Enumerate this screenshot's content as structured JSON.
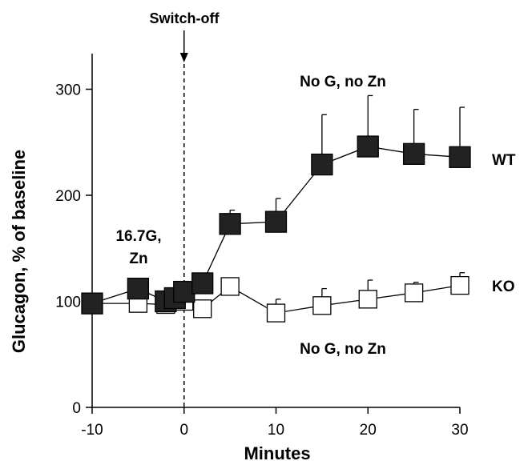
{
  "chart_data": {
    "type": "line",
    "title": "",
    "xlabel": "Minutes",
    "ylabel": "Glucagon, % of baseline",
    "xlim": [
      -10,
      30
    ],
    "ylim": [
      0,
      340
    ],
    "xticks": [
      -10,
      0,
      10,
      20,
      30
    ],
    "yticks": [
      0,
      100,
      200,
      300
    ],
    "grid": false,
    "x_tick_labels": [
      "-10",
      "0",
      "10",
      "20",
      "30"
    ],
    "y_tick_labels": [
      "0",
      "100",
      "200",
      "300"
    ],
    "switch_off": {
      "x": 0,
      "label": "Switch-off"
    },
    "series": [
      {
        "name": "WT",
        "marker": "filled-square",
        "color": "#000000",
        "points": [
          {
            "x": -10,
            "y": 98,
            "err": 8
          },
          {
            "x": -5,
            "y": 112,
            "err": 6
          },
          {
            "x": -2,
            "y": 100,
            "err": 4
          },
          {
            "x": -1,
            "y": 103,
            "err": 4
          },
          {
            "x": 0,
            "y": 109,
            "err": 5
          },
          {
            "x": 2,
            "y": 117,
            "err": 5
          },
          {
            "x": 5,
            "y": 173,
            "err": 13
          },
          {
            "x": 10,
            "y": 175,
            "err": 22
          },
          {
            "x": 15,
            "y": 229,
            "err": 47
          },
          {
            "x": 20,
            "y": 246,
            "err": 48
          },
          {
            "x": 25,
            "y": 239,
            "err": 42
          },
          {
            "x": 30,
            "y": 236,
            "err": 47
          }
        ]
      },
      {
        "name": "KO",
        "marker": "open-square",
        "color": "#000000",
        "points": [
          {
            "x": -10,
            "y": 98,
            "err": 5
          },
          {
            "x": -5,
            "y": 98,
            "err": 4
          },
          {
            "x": -2,
            "y": 97,
            "err": 3
          },
          {
            "x": 0,
            "y": 100,
            "err": 3
          },
          {
            "x": 2,
            "y": 93,
            "err": 3
          },
          {
            "x": 5,
            "y": 114,
            "err": 4
          },
          {
            "x": 10,
            "y": 89,
            "err": 13
          },
          {
            "x": 15,
            "y": 96,
            "err": 16
          },
          {
            "x": 20,
            "y": 102,
            "err": 18
          },
          {
            "x": 25,
            "y": 108,
            "err": 10
          },
          {
            "x": 30,
            "y": 115,
            "err": 12
          }
        ]
      }
    ],
    "annotations": {
      "pre_label_line1": "16.7G,",
      "pre_label_line2": "Zn",
      "post_top": "No G, no Zn",
      "post_bottom": "No G, no Zn"
    }
  }
}
